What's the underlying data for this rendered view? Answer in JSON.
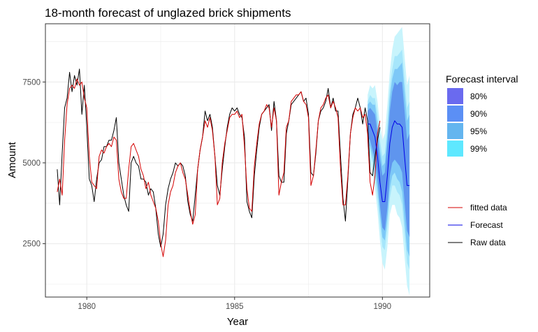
{
  "chart_data": {
    "type": "line",
    "title": "18-month forecast of unglazed brick shipments",
    "xlabel": "Year",
    "ylabel": "Amount",
    "xlim": [
      1978.6,
      1991.6
    ],
    "ylim": [
      850,
      9300
    ],
    "xticks": [
      1980,
      1985,
      1990
    ],
    "xtick_labels": [
      "1980",
      "1985",
      "1990"
    ],
    "yticks": [
      2500,
      5000,
      7500
    ],
    "ytick_labels": [
      "2500",
      "5000",
      "7500"
    ],
    "grid": true,
    "legend_placement": "right",
    "colors": {
      "raw": "#000000",
      "fitted": "#d40000",
      "forecast": "#0000e6",
      "interval_80": "#6a6aef",
      "interval_90": "#5b8ff5",
      "interval_95": "#64b5ef",
      "interval_99": "#5ee8ff",
      "band_99": "#c8f4fc",
      "band_95": "#a6e6fb",
      "band_90": "#7dc8f7",
      "band_80": "#5f95ee",
      "panel_border": "#333333",
      "grid": "#ebebeb"
    },
    "legend_interval_title": "Forecast interval",
    "interval_levels": [
      "80%",
      "90%",
      "95%",
      "99%"
    ],
    "line_legend": [
      "fitted data",
      "Forecast",
      "Raw data"
    ],
    "series": [
      {
        "name": "Raw data",
        "x_start": 1979.0,
        "x_step": 0.08333,
        "values": [
          4800,
          3700,
          5300,
          6700,
          7000,
          7800,
          7200,
          7700,
          7400,
          7900,
          6500,
          7400,
          6100,
          4500,
          4300,
          3800,
          4500,
          5000,
          5100,
          5500,
          5500,
          5700,
          5700,
          6000,
          6400,
          5000,
          4500,
          4000,
          3700,
          3500,
          5000,
          5200,
          5000,
          4900,
          4500,
          4500,
          4400,
          4000,
          4200,
          4100,
          3600,
          2800,
          2400,
          2800,
          3700,
          4200,
          4500,
          4700,
          5000,
          4900,
          5000,
          4900,
          4600,
          3800,
          3400,
          3200,
          4000,
          4800,
          5400,
          5800,
          6600,
          6300,
          6500,
          6100,
          5200,
          4300,
          4000,
          4800,
          5500,
          6100,
          6500,
          6700,
          6600,
          6700,
          6500,
          6400,
          5800,
          3800,
          3500,
          3300,
          4600,
          5400,
          6100,
          6500,
          6600,
          6700,
          6800,
          6000,
          6900,
          6300,
          4600,
          4400,
          4400,
          5900,
          6300,
          6800,
          6900,
          7000,
          7100,
          7200,
          6900,
          7000,
          6500,
          4700,
          4600,
          5300,
          6300,
          6600,
          6700,
          6900,
          7300,
          6700,
          7000,
          6600,
          6600,
          5200,
          3900,
          3200,
          4500,
          5900,
          6500,
          6700,
          7000,
          6700,
          6200,
          6700,
          6300,
          4700,
          4600,
          5200,
          5700,
          6100
        ]
      },
      {
        "name": "fitted data",
        "x_start": 1979.0,
        "x_step": 0.08333,
        "values": [
          4100,
          4500,
          4000,
          5700,
          6800,
          7300,
          7400,
          7300,
          7600,
          7400,
          7500,
          7000,
          6700,
          5200,
          4400,
          4300,
          4200,
          5200,
          5400,
          5300,
          5500,
          5600,
          5500,
          5800,
          5700,
          4500,
          4100,
          3900,
          3900,
          4800,
          5500,
          5600,
          5400,
          5200,
          4800,
          4600,
          4200,
          4400,
          4000,
          3800,
          3600,
          3200,
          2500,
          2100,
          2600,
          3700,
          4100,
          4300,
          4700,
          4900,
          5000,
          4700,
          4500,
          4000,
          3500,
          3100,
          3400,
          4800,
          5400,
          5800,
          6300,
          6100,
          6400,
          6000,
          5200,
          3700,
          3900,
          5000,
          5600,
          6000,
          6400,
          6500,
          6500,
          6600,
          6400,
          6500,
          5500,
          4200,
          3600,
          3500,
          4900,
          5600,
          6200,
          6500,
          6600,
          6800,
          6700,
          6100,
          6700,
          6300,
          4000,
          4400,
          4700,
          6100,
          6300,
          6900,
          7000,
          7100,
          7100,
          7200,
          6900,
          6800,
          6400,
          4300,
          4600,
          5400,
          6300,
          6700,
          6800,
          7000,
          7100,
          6700,
          6900,
          6700,
          6400,
          4800,
          3700,
          3700,
          4600,
          5900,
          6400,
          6700,
          6600,
          6700,
          6400,
          6500,
          5900,
          4400,
          4000,
          4600,
          5900,
          6300
        ]
      },
      {
        "name": "Forecast",
        "x_start": 1989.5,
        "x_step": 0.08333,
        "values": [
          6200,
          6200,
          6000,
          5800,
          5200,
          4400,
          3800,
          3800,
          4600,
          5600,
          6100,
          6300,
          6200,
          6200,
          6100,
          5200,
          4300,
          4300
        ],
        "intervals": {
          "80": {
            "lower": [
              5800,
              5700,
              5400,
              5100,
              4500,
              3700,
              3000,
              2900,
              3600,
              4600,
              5000,
              5100,
              5000,
              4900,
              4700,
              3800,
              2900,
              2700
            ],
            "upper": [
              6600,
              6700,
              6600,
              6500,
              5900,
              5100,
              4600,
              4700,
              5600,
              6600,
              7200,
              7500,
              7400,
              7500,
              7500,
              6600,
              5700,
              5900
            ]
          },
          "90": {
            "lower": [
              5600,
              5500,
              5200,
              4800,
              4200,
              3400,
              2700,
              2600,
              3300,
              4200,
              4600,
              4700,
              4500,
              4400,
              4100,
              3200,
              2300,
              2100
            ],
            "upper": [
              6800,
              6900,
              6800,
              6800,
              6200,
              5400,
              4900,
              5000,
              5900,
              7000,
              7600,
              7900,
              7900,
              8000,
              8100,
              7200,
              6300,
              6500
            ]
          },
          "95": {
            "lower": [
              5500,
              5300,
              5000,
              4600,
              3900,
              3100,
              2400,
              2300,
              3000,
              3900,
              4300,
              4300,
              4100,
              4000,
              3700,
              2800,
              1900,
              1700
            ],
            "upper": [
              6900,
              7100,
              7000,
              7000,
              6500,
              5700,
              5200,
              5300,
              6200,
              7300,
              7900,
              8300,
              8300,
              8400,
              8500,
              7600,
              6700,
              6900
            ]
          },
          "99": {
            "lower": [
              5300,
              5000,
              4700,
              4200,
              3500,
              2600,
              1900,
              1700,
              2400,
              3400,
              3700,
              3700,
              3400,
              3300,
              3000,
              2100,
              1200,
              900
            ],
            "upper": [
              7100,
              7400,
              7300,
              7400,
              6900,
              6200,
              5700,
              5900,
              6800,
              7800,
              8500,
              8900,
              9000,
              9100,
              9200,
              8300,
              7400,
              7700
            ]
          }
        }
      }
    ]
  }
}
